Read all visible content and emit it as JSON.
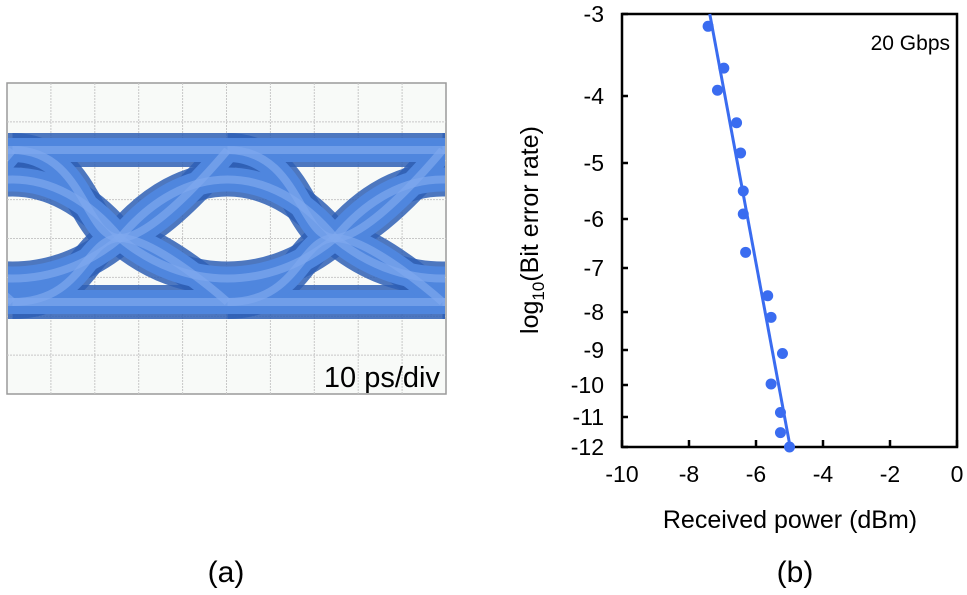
{
  "panel_a": {
    "label": "(a)",
    "scale_annotation": "10 ps/div",
    "grid": {
      "columns": 10,
      "rows": 8
    },
    "trace_color": "#4f86de",
    "trace_edge_color": "#2f5fb5"
  },
  "panel_b": {
    "label": "(b)"
  },
  "chart_data": {
    "type": "scatter",
    "annotation": "20 Gbps",
    "xlabel": "Received power (dBm)",
    "ylabel_prefix": "log",
    "ylabel_sub": "10",
    "ylabel_rest": "(Bit error rate)",
    "xlim": [
      -10,
      0
    ],
    "ylim": [
      -12,
      -3
    ],
    "xticks": [
      "-10",
      "-8",
      "-6",
      "-4",
      "-2",
      "0"
    ],
    "yticks": [
      "-3",
      "-4",
      "-5",
      "-6",
      "-7",
      "-8",
      "-9",
      "-10",
      "-11",
      "-12"
    ],
    "y_scale": "nonlinear (BER)",
    "color": "#3a6cf0",
    "points": [
      {
        "x": -7.43,
        "y": -3.15
      },
      {
        "x": -6.96,
        "y": -3.66
      },
      {
        "x": -7.15,
        "y": -3.93
      },
      {
        "x": -6.58,
        "y": -4.4
      },
      {
        "x": -6.46,
        "y": -4.85
      },
      {
        "x": -6.38,
        "y": -5.5
      },
      {
        "x": -6.38,
        "y": -5.91
      },
      {
        "x": -6.31,
        "y": -6.68
      },
      {
        "x": -5.65,
        "y": -7.63
      },
      {
        "x": -5.55,
        "y": -8.14
      },
      {
        "x": -5.21,
        "y": -9.1
      },
      {
        "x": -5.55,
        "y": -9.97
      },
      {
        "x": -5.27,
        "y": -10.86
      },
      {
        "x": -5.27,
        "y": -11.52
      },
      {
        "x": -5.0,
        "y": -12.0
      }
    ],
    "fit_line": [
      {
        "x": -7.38,
        "y": -3
      },
      {
        "x": -4.98,
        "y": -12
      }
    ],
    "grid": false,
    "legend": "none"
  }
}
